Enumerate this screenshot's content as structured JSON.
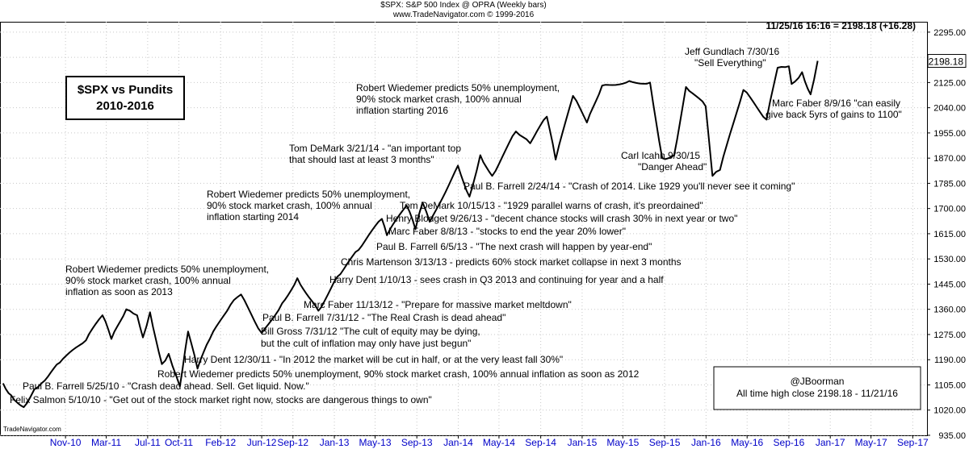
{
  "header": {
    "title": "$SPX:  S&P 500 Index @ OPRA  (Weekly bars)",
    "copyright": "www.TradeNavigator.com © 1999-2016",
    "last_quote": "11/25/16 16:16 = 2198.18 (+16.28)",
    "watermark": "TradeNavigator.com"
  },
  "chart_data": {
    "type": "line",
    "title": "$SPX vs Pundits",
    "subtitle": "2010-2016",
    "x_tick_labels": [
      "Nov-10",
      "Mar-11",
      "Jul-11",
      "Oct-11",
      "Feb-12",
      "Jun-12",
      "Sep-12",
      "Jan-13",
      "May-13",
      "Sep-13",
      "Jan-14",
      "May-14",
      "Sep-14",
      "Jan-15",
      "May-15",
      "Sep-15",
      "Jan-16",
      "May-16",
      "Sep-16",
      "Jan-17",
      "May-17",
      "Sep-17"
    ],
    "y_tick_labels": [
      "935.00",
      "1020.00",
      "1105.00",
      "1190.00",
      "1275.00",
      "1360.00",
      "1445.00",
      "1530.00",
      "1615.00",
      "1700.00",
      "1785.00",
      "1870.00",
      "1955.00",
      "2040.00",
      "2125.00",
      "2210.00",
      "2295.00"
    ],
    "ylim": [
      935,
      2330
    ],
    "last_value_label": "2198.18",
    "grid": true,
    "series": [
      {
        "color": "#000000",
        "points": [
          [
            "2010-05-01",
            1110
          ],
          [
            "2010-05-25",
            1070
          ],
          [
            "2010-07-01",
            1030
          ],
          [
            "2010-08-01",
            1090
          ],
          [
            "2010-09-01",
            1120
          ],
          [
            "2010-10-15",
            1180
          ],
          [
            "2010-12-31",
            1255
          ],
          [
            "2011-02-18",
            1340
          ],
          [
            "2011-03-16",
            1260
          ],
          [
            "2011-04-29",
            1360
          ],
          [
            "2011-05-31",
            1340
          ],
          [
            "2011-06-17",
            1265
          ],
          [
            "2011-07-08",
            1350
          ],
          [
            "2011-08-12",
            1175
          ],
          [
            "2011-09-01",
            1210
          ],
          [
            "2011-10-04",
            1100
          ],
          [
            "2011-10-28",
            1285
          ],
          [
            "2011-11-25",
            1160
          ],
          [
            "2011-12-31",
            1260
          ],
          [
            "2012-03-01",
            1375
          ],
          [
            "2012-04-01",
            1410
          ],
          [
            "2012-06-01",
            1280
          ],
          [
            "2012-07-31",
            1380
          ],
          [
            "2012-09-14",
            1465
          ],
          [
            "2012-11-15",
            1355
          ],
          [
            "2013-01-10",
            1470
          ],
          [
            "2013-03-13",
            1560
          ],
          [
            "2013-05-21",
            1665
          ],
          [
            "2013-06-05",
            1610
          ],
          [
            "2013-08-02",
            1710
          ],
          [
            "2013-08-28",
            1630
          ],
          [
            "2013-09-18",
            1720
          ],
          [
            "2013-10-09",
            1655
          ],
          [
            "2013-12-31",
            1845
          ],
          [
            "2014-02-03",
            1740
          ],
          [
            "2014-03-07",
            1880
          ],
          [
            "2014-04-11",
            1810
          ],
          [
            "2014-06-20",
            1960
          ],
          [
            "2014-08-01",
            1920
          ],
          [
            "2014-09-19",
            2010
          ],
          [
            "2014-10-15",
            1865
          ],
          [
            "2014-12-05",
            2080
          ],
          [
            "2015-01-15",
            1990
          ],
          [
            "2015-03-01",
            2115
          ],
          [
            "2015-05-20",
            2130
          ],
          [
            "2015-07-20",
            2125
          ],
          [
            "2015-08-25",
            1870
          ],
          [
            "2015-09-29",
            1880
          ],
          [
            "2015-11-03",
            2110
          ],
          [
            "2015-12-31",
            2045
          ],
          [
            "2016-01-20",
            1810
          ],
          [
            "2016-02-11",
            1830
          ],
          [
            "2016-04-20",
            2100
          ],
          [
            "2016-06-27",
            2000
          ],
          [
            "2016-07-30",
            2175
          ],
          [
            "2016-09-01",
            2180
          ],
          [
            "2016-09-09",
            2120
          ],
          [
            "2016-10-10",
            2160
          ],
          [
            "2016-11-04",
            2085
          ],
          [
            "2016-11-25",
            2198
          ]
        ]
      }
    ],
    "annotations": [
      "Felix Salmon 5/10/10 - \"Get out of the stock market right now, stocks are dangerous things to own\"",
      "Paul B. Farrell 5/25/10 - \"Crash dead ahead. Sell. Get liquid. Now.\"",
      "Robert Wiedemer predicts 50% unemployment, 90% stock market crash, 100% annual inflation as soon as 2012",
      "Harry Dent 12/30/11 - \"In 2012 the market will be cut in half, or at the very least fall 30%\"",
      "Bill Gross 7/31/12 \"The cult of equity may be dying,",
      "but the cult of inflation may only have just begun\"",
      "Paul B. Farrell 7/31/12 - \"The Real Crash is dead ahead\"",
      "Marc Faber 11/13/12 - \"Prepare for massive market meltdown\"",
      "Harry Dent  1/10/13 - sees crash in Q3 2013 and continuing for year and a half",
      "Chris Martenson 3/13/13 - predicts 60% stock market collapse in next 3 months",
      "Paul B. Farrell   6/5/13 - \"The next crash will happen by year-end\"",
      "Marc Faber 8/8/13 - \"stocks to end the year 20% lower\"",
      "Henry Blodget 9/26/13 - \"decent chance stocks will crash 30% in next year or two\"",
      "Tom DeMark 10/15/13 - \"1929 parallel warns of crash, it's preordained\"",
      "Paul B. Farrell 2/24/14 - \"Crash of 2014. Like 1929 you'll never see it coming\"",
      "Robert Wiedemer predicts 50% unemployment,",
      "90% stock market crash, 100% annual",
      "inflation as soon as 2013",
      "Robert Wiedemer predicts 50% unemployment,",
      "90% stock market crash, 100% annual",
      "inflation starting 2014",
      "Tom DeMark   3/21/14 - \"an important top",
      "that should last at least 3 months\"",
      "Robert Wiedemer predicts 50% unemployment,",
      "90% stock market crash, 100% annual",
      "inflation starting 2016",
      "Carl Icahn 9/30/15",
      "\"Danger Ahead\"",
      "Jeff Gundlach 7/30/16",
      "\"Sell Everything\"",
      "Marc Faber 8/9/16 \"can easily",
      "give back 5yrs of gains to 1100\"",
      "@JBoorman",
      "All time high close 2198.18 - 11/21/16"
    ]
  }
}
